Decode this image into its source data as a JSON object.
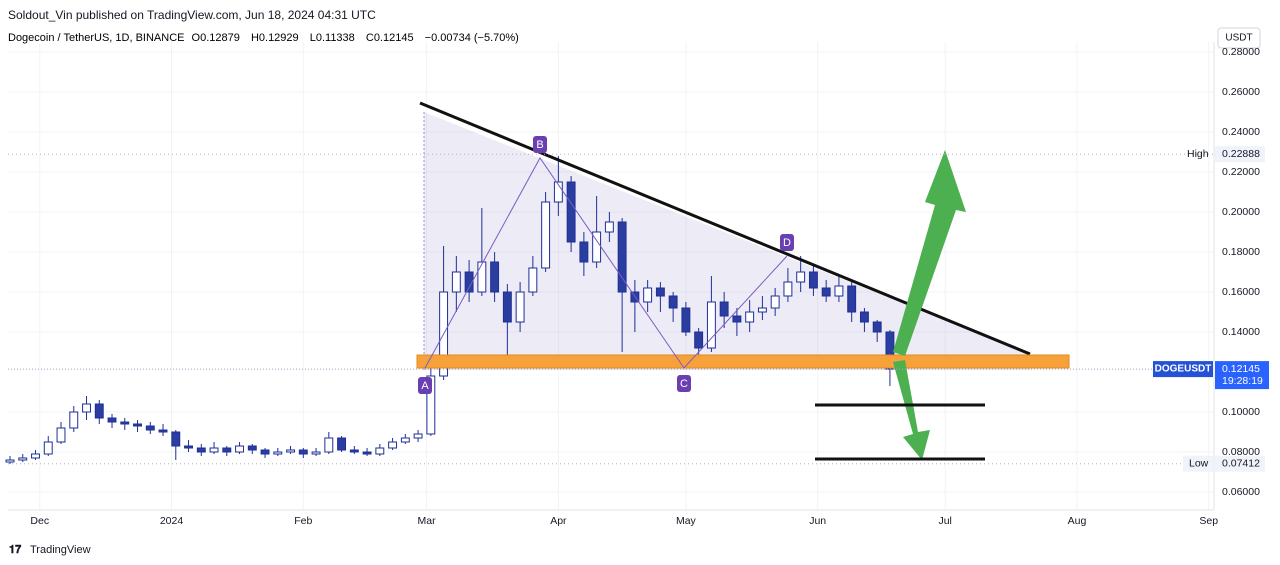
{
  "header": {
    "publisher": "Soldout_Vin published on TradingView.com, Jun 18, 2024 04:31 UTC",
    "symbol": "Dogecoin / TetherUS, 1D, BINANCE",
    "ohlc": [
      {
        "label": "O",
        "value": 0.12879
      },
      {
        "label": "H",
        "value": 0.12929
      },
      {
        "label": "L",
        "value": 0.11338
      },
      {
        "label": "C",
        "value": 0.12145
      }
    ],
    "change": "−0.00734 (−5.70%)",
    "currency": "USDT"
  },
  "footer": {
    "brand": "TradingView"
  },
  "chart_data": {
    "type": "candlestick",
    "grid": true,
    "up_color": "#ffffff",
    "down_color": "#2b3ea0",
    "outline_color": "#1e2f97",
    "xlim": [
      0,
      283
    ],
    "ylim": [
      0.051,
      0.282
    ],
    "xticks": [
      {
        "value": 7,
        "label": "Dec"
      },
      {
        "value": 38,
        "label": "2024"
      },
      {
        "value": 69,
        "label": "Feb"
      },
      {
        "value": 98,
        "label": "Mar"
      },
      {
        "value": 129,
        "label": "Apr"
      },
      {
        "value": 159,
        "label": "May"
      },
      {
        "value": 190,
        "label": "Jun"
      },
      {
        "value": 220,
        "label": "Jul"
      },
      {
        "value": 251,
        "label": "Aug"
      },
      {
        "value": 282,
        "label": "Sep"
      }
    ],
    "yticks": [
      {
        "value": 0.06,
        "label": "0.06000"
      },
      {
        "value": 0.08,
        "label": "0.08000"
      },
      {
        "value": 0.1,
        "label": "0.10000"
      },
      {
        "value": 0.14,
        "label": "0.14000"
      },
      {
        "value": 0.16,
        "label": "0.16000"
      },
      {
        "value": 0.18,
        "label": "0.18000"
      },
      {
        "value": 0.2,
        "label": "0.20000"
      },
      {
        "value": 0.22,
        "label": "0.22000"
      },
      {
        "value": 0.24,
        "label": "0.24000"
      },
      {
        "value": 0.26,
        "label": "0.26000"
      },
      {
        "value": 0.28,
        "label": "0.28000"
      }
    ],
    "x": [
      0,
      3,
      6,
      9,
      12,
      15,
      18,
      21,
      24,
      27,
      30,
      33,
      36,
      39,
      42,
      45,
      48,
      51,
      54,
      57,
      60,
      63,
      66,
      69,
      72,
      75,
      78,
      81,
      84,
      87,
      90,
      93,
      96,
      99,
      102,
      105,
      108,
      111,
      114,
      117,
      120,
      123,
      126,
      129,
      132,
      135,
      138,
      141,
      144,
      147,
      150,
      153,
      156,
      159,
      162,
      165,
      168,
      171,
      174,
      177,
      180,
      183,
      186,
      189,
      192,
      195,
      198,
      201,
      204,
      207
    ],
    "open": [
      0.075,
      0.076,
      0.077,
      0.079,
      0.085,
      0.092,
      0.1,
      0.104,
      0.097,
      0.095,
      0.094,
      0.093,
      0.091,
      0.09,
      0.083,
      0.082,
      0.08,
      0.082,
      0.08,
      0.083,
      0.081,
      0.079,
      0.08,
      0.081,
      0.079,
      0.08,
      0.087,
      0.081,
      0.08,
      0.079,
      0.082,
      0.085,
      0.087,
      0.089,
      0.118,
      0.16,
      0.17,
      0.16,
      0.175,
      0.16,
      0.145,
      0.16,
      0.172,
      0.205,
      0.215,
      0.185,
      0.175,
      0.19,
      0.195,
      0.16,
      0.155,
      0.162,
      0.158,
      0.152,
      0.14,
      0.132,
      0.155,
      0.148,
      0.145,
      0.15,
      0.152,
      0.158,
      0.165,
      0.17,
      0.162,
      0.158,
      0.163,
      0.15,
      0.145,
      0.14
    ],
    "high": [
      0.078,
      0.079,
      0.081,
      0.088,
      0.095,
      0.103,
      0.108,
      0.106,
      0.099,
      0.097,
      0.096,
      0.095,
      0.094,
      0.091,
      0.086,
      0.084,
      0.085,
      0.083,
      0.085,
      0.084,
      0.082,
      0.082,
      0.083,
      0.082,
      0.082,
      0.09,
      0.088,
      0.083,
      0.082,
      0.084,
      0.087,
      0.089,
      0.091,
      0.125,
      0.183,
      0.178,
      0.176,
      0.202,
      0.18,
      0.164,
      0.165,
      0.178,
      0.21,
      0.228,
      0.218,
      0.19,
      0.208,
      0.2,
      0.197,
      0.166,
      0.166,
      0.165,
      0.16,
      0.155,
      0.142,
      0.168,
      0.16,
      0.152,
      0.156,
      0.158,
      0.162,
      0.172,
      0.178,
      0.174,
      0.166,
      0.168,
      0.166,
      0.152,
      0.146,
      0.141
    ],
    "low": [
      0.074,
      0.075,
      0.076,
      0.078,
      0.084,
      0.09,
      0.096,
      0.094,
      0.092,
      0.091,
      0.09,
      0.089,
      0.088,
      0.076,
      0.08,
      0.078,
      0.079,
      0.078,
      0.079,
      0.079,
      0.077,
      0.078,
      0.079,
      0.077,
      0.078,
      0.079,
      0.08,
      0.079,
      0.078,
      0.078,
      0.081,
      0.084,
      0.085,
      0.088,
      0.116,
      0.15,
      0.155,
      0.158,
      0.155,
      0.124,
      0.14,
      0.158,
      0.17,
      0.198,
      0.18,
      0.168,
      0.172,
      0.185,
      0.13,
      0.14,
      0.15,
      0.15,
      0.145,
      0.138,
      0.125,
      0.13,
      0.142,
      0.138,
      0.14,
      0.146,
      0.148,
      0.155,
      0.16,
      0.158,
      0.155,
      0.155,
      0.145,
      0.14,
      0.135,
      0.113
    ],
    "close": [
      0.076,
      0.077,
      0.079,
      0.085,
      0.092,
      0.1,
      0.104,
      0.097,
      0.095,
      0.094,
      0.093,
      0.091,
      0.09,
      0.083,
      0.082,
      0.08,
      0.082,
      0.08,
      0.083,
      0.081,
      0.079,
      0.08,
      0.081,
      0.079,
      0.08,
      0.087,
      0.081,
      0.08,
      0.079,
      0.082,
      0.085,
      0.087,
      0.089,
      0.118,
      0.16,
      0.17,
      0.16,
      0.175,
      0.16,
      0.145,
      0.16,
      0.172,
      0.205,
      0.215,
      0.185,
      0.175,
      0.19,
      0.195,
      0.16,
      0.155,
      0.162,
      0.158,
      0.152,
      0.14,
      0.132,
      0.155,
      0.148,
      0.145,
      0.15,
      0.152,
      0.158,
      0.165,
      0.17,
      0.162,
      0.158,
      0.163,
      0.15,
      0.145,
      0.14,
      0.12145
    ],
    "high_marker": {
      "label": "High",
      "value": 0.22888
    },
    "low_marker": {
      "label": "Low",
      "value": 0.07412
    },
    "last_price": {
      "symbol": "DOGEUSDT",
      "value": 0.12145,
      "countdown": "19:28:19"
    },
    "pattern_labels": [
      "A",
      "B",
      "C",
      "D"
    ]
  }
}
